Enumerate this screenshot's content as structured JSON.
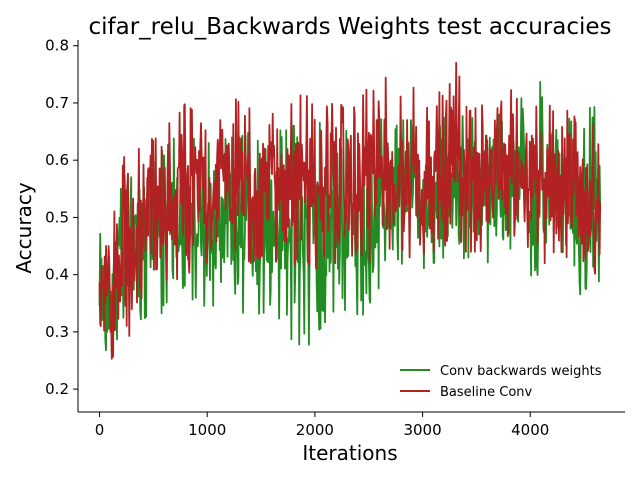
{
  "chart_data": {
    "type": "line",
    "title": "cifar_relu_Backwards Weights test accuracies",
    "xlabel": "Iterations",
    "ylabel": "Accuracy",
    "xlim": [
      -200,
      4880
    ],
    "ylim": [
      0.16,
      0.81
    ],
    "xticks": [
      0,
      1000,
      2000,
      3000,
      4000
    ],
    "xtick_labels": [
      "0",
      "1000",
      "2000",
      "3000",
      "4000"
    ],
    "yticks": [
      0.2,
      0.3,
      0.4,
      0.5,
      0.6,
      0.7,
      0.8
    ],
    "ytick_labels": [
      "0.2",
      "0.3",
      "0.4",
      "0.5",
      "0.6",
      "0.7",
      "0.8"
    ],
    "grid": false,
    "legend_position": "lower-right",
    "series": [
      {
        "name": "Conv backwards weights",
        "color": "#228b22",
        "x": [
          0,
          100,
          200,
          300,
          400,
          500,
          600,
          700,
          800,
          900,
          1000,
          1100,
          1200,
          1300,
          1400,
          1500,
          1600,
          1700,
          1800,
          1900,
          2000,
          2100,
          2200,
          2300,
          2400,
          2500,
          2600,
          2700,
          2800,
          2900,
          3000,
          3100,
          3200,
          3300,
          3400,
          3500,
          3600,
          3700,
          3800,
          3900,
          4000,
          4100,
          4200,
          4300,
          4400,
          4500,
          4600,
          4650
        ],
        "low": [
          0.28,
          0.26,
          0.28,
          0.3,
          0.32,
          0.34,
          0.33,
          0.36,
          0.35,
          0.36,
          0.34,
          0.35,
          0.34,
          0.33,
          0.34,
          0.33,
          0.33,
          0.32,
          0.28,
          0.26,
          0.3,
          0.31,
          0.33,
          0.34,
          0.33,
          0.33,
          0.38,
          0.4,
          0.41,
          0.42,
          0.41,
          0.42,
          0.43,
          0.42,
          0.43,
          0.43,
          0.42,
          0.44,
          0.43,
          0.42,
          0.4,
          0.38,
          0.39,
          0.36,
          0.34,
          0.38,
          0.35,
          0.4
        ],
        "high": [
          0.47,
          0.5,
          0.56,
          0.6,
          0.58,
          0.6,
          0.62,
          0.64,
          0.63,
          0.64,
          0.63,
          0.63,
          0.64,
          0.64,
          0.65,
          0.64,
          0.66,
          0.65,
          0.66,
          0.66,
          0.67,
          0.66,
          0.67,
          0.66,
          0.67,
          0.66,
          0.67,
          0.68,
          0.67,
          0.67,
          0.68,
          0.67,
          0.68,
          0.67,
          0.68,
          0.67,
          0.67,
          0.68,
          0.68,
          0.71,
          0.7,
          0.74,
          0.68,
          0.66,
          0.68,
          0.67,
          0.71,
          0.6
        ]
      },
      {
        "name": "Baseline Conv",
        "color": "#b22222",
        "x": [
          0,
          100,
          200,
          300,
          400,
          500,
          600,
          700,
          800,
          900,
          1000,
          1100,
          1200,
          1300,
          1400,
          1500,
          1600,
          1700,
          1800,
          1900,
          2000,
          2100,
          2200,
          2300,
          2400,
          2500,
          2600,
          2700,
          2800,
          2900,
          3000,
          3100,
          3200,
          3300,
          3400,
          3500,
          3600,
          3700,
          3800,
          3900,
          4000,
          4100,
          4200,
          4300,
          4400,
          4500,
          4600,
          4650
        ],
        "low": [
          0.24,
          0.25,
          0.27,
          0.3,
          0.33,
          0.36,
          0.37,
          0.39,
          0.4,
          0.41,
          0.42,
          0.42,
          0.43,
          0.43,
          0.42,
          0.43,
          0.43,
          0.41,
          0.42,
          0.4,
          0.41,
          0.42,
          0.42,
          0.43,
          0.42,
          0.42,
          0.43,
          0.42,
          0.43,
          0.43,
          0.43,
          0.44,
          0.44,
          0.44,
          0.44,
          0.44,
          0.44,
          0.44,
          0.44,
          0.44,
          0.44,
          0.42,
          0.42,
          0.42,
          0.4,
          0.41,
          0.4,
          0.44
        ],
        "high": [
          0.47,
          0.48,
          0.6,
          0.62,
          0.62,
          0.64,
          0.66,
          0.67,
          0.7,
          0.68,
          0.69,
          0.7,
          0.72,
          0.7,
          0.69,
          0.7,
          0.71,
          0.69,
          0.7,
          0.72,
          0.69,
          0.7,
          0.71,
          0.68,
          0.7,
          0.73,
          0.75,
          0.74,
          0.71,
          0.76,
          0.7,
          0.73,
          0.71,
          0.78,
          0.7,
          0.69,
          0.72,
          0.69,
          0.73,
          0.7,
          0.71,
          0.72,
          0.69,
          0.7,
          0.69,
          0.68,
          0.66,
          0.61
        ]
      }
    ]
  }
}
